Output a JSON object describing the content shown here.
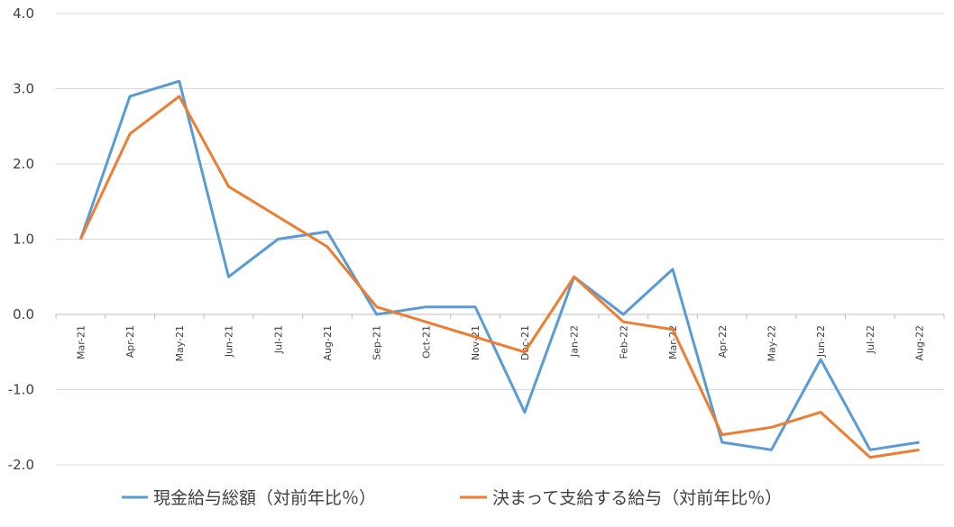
{
  "chart_data": {
    "type": "line",
    "title": "",
    "xlabel": "",
    "ylabel": "",
    "ylim": [
      -2.0,
      4.0
    ],
    "yticks": [
      "4.0",
      "3.0",
      "2.0",
      "1.0",
      "0.0",
      "-1.0",
      "-2.0"
    ],
    "ytick_values": [
      4,
      3,
      2,
      1,
      0,
      -1,
      -2
    ],
    "grid": true,
    "legend_position": "bottom",
    "categories": [
      "Mar-21",
      "Apr-21",
      "May-21",
      "Jun-21",
      "Jul-21",
      "Aug-21",
      "Sep-21",
      "Oct-21",
      "Nov-21",
      "Dec-21",
      "Jan-22",
      "Feb-22",
      "Mar-22",
      "Apr-22",
      "May-22",
      "Jun-22",
      "Jul-22",
      "Aug-22"
    ],
    "series": [
      {
        "name": "現金給与総額（対前年比％）",
        "color": "#5b9bd5",
        "values": [
          1.0,
          2.9,
          3.1,
          0.5,
          1.0,
          1.1,
          0.0,
          0.1,
          0.1,
          -1.3,
          0.5,
          0.0,
          0.6,
          -1.7,
          -1.8,
          -0.6,
          -1.8,
          -1.7
        ]
      },
      {
        "name": "決まって支給する給与（対前年比％）",
        "color": "#ed7d31",
        "values": [
          1.0,
          2.4,
          2.9,
          1.7,
          1.3,
          0.9,
          0.1,
          -0.1,
          -0.3,
          -0.5,
          0.5,
          -0.1,
          -0.2,
          -1.6,
          -1.5,
          -1.3,
          -1.9,
          -1.8
        ]
      }
    ]
  }
}
